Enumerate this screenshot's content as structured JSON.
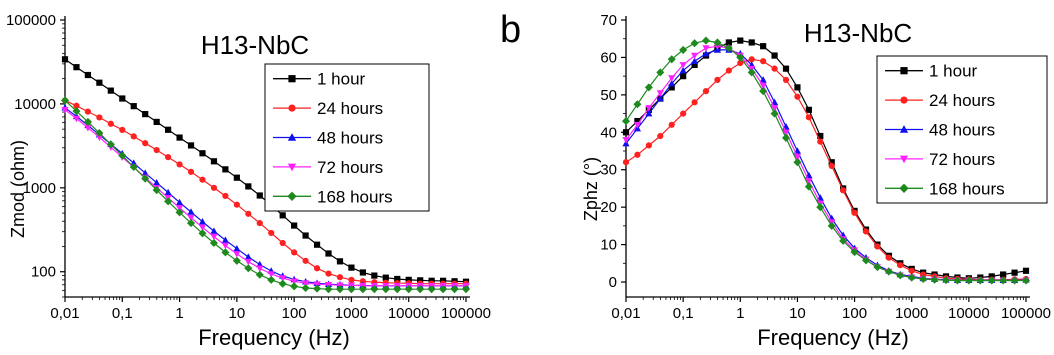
{
  "chart_data": [
    {
      "type": "line",
      "panel_label": "",
      "title": "H13-NbC",
      "xlabel": "Frequency (Hz)",
      "ylabel": "Zmod (ohm)",
      "x_scale": "log",
      "y_scale": "log",
      "xlim": [
        0.01,
        100000
      ],
      "ylim": [
        50,
        100000
      ],
      "x_ticks": [
        0.01,
        0.1,
        1,
        10,
        100,
        1000,
        10000,
        100000
      ],
      "x_tick_labels": [
        "0,01",
        "0,1",
        "1",
        "10",
        "100",
        "1000",
        "10000",
        "100000"
      ],
      "y_ticks": [
        100,
        1000,
        10000,
        100000
      ],
      "y_tick_labels": [
        "100",
        "1000",
        "10000",
        "100000"
      ],
      "grid": false,
      "legend_position": "top-right",
      "x": [
        0.01,
        0.01585,
        0.02512,
        0.03981,
        0.0631,
        0.1,
        0.1585,
        0.2512,
        0.3981,
        0.631,
        1,
        1.585,
        2.512,
        3.981,
        6.31,
        10,
        15.85,
        25.12,
        39.81,
        63.1,
        100,
        158.5,
        251.2,
        398.1,
        631,
        1000,
        1585,
        2512,
        3981,
        6310,
        10000,
        15850,
        25120,
        39810,
        63100,
        100000
      ],
      "series": [
        {
          "name": "1 hour",
          "color": "#000000",
          "marker": "square",
          "values": [
            34000,
            27400,
            22100,
            17900,
            14400,
            11600,
            9400,
            7560,
            6100,
            4920,
            3970,
            3200,
            2580,
            2070,
            1660,
            1320,
            1040,
            810,
            620,
            470,
            355,
            270,
            210,
            165,
            133,
            112,
            98,
            90,
            85,
            82,
            80,
            79,
            78,
            78,
            77,
            76
          ]
        },
        {
          "name": "24 hours",
          "color": "#ff2020",
          "marker": "circle",
          "values": [
            11000,
            9500,
            8100,
            6900,
            5800,
            4900,
            4100,
            3400,
            2820,
            2320,
            1900,
            1550,
            1250,
            1000,
            800,
            630,
            490,
            380,
            290,
            220,
            170,
            135,
            110,
            95,
            86,
            80,
            77,
            75,
            74,
            73,
            73,
            72,
            72,
            72,
            72,
            72
          ]
        },
        {
          "name": "48 hours",
          "color": "#1010ee",
          "marker": "triangle-up",
          "values": [
            9000,
            7100,
            5550,
            4300,
            3320,
            2560,
            1970,
            1500,
            1150,
            880,
            670,
            515,
            395,
            305,
            238,
            188,
            150,
            122,
            102,
            89,
            81,
            76,
            73,
            71,
            70,
            69,
            69,
            68,
            68,
            68,
            68,
            68,
            68,
            68,
            68,
            68
          ]
        },
        {
          "name": "72 hours",
          "color": "#ff20ff",
          "marker": "triangle-down",
          "values": [
            8500,
            6700,
            5200,
            4000,
            3050,
            2320,
            1760,
            1330,
            1000,
            760,
            575,
            440,
            338,
            262,
            205,
            163,
            132,
            110,
            94,
            84,
            77,
            73,
            71,
            70,
            69,
            69,
            68,
            68,
            68,
            68,
            68,
            68,
            68,
            68,
            68,
            68
          ]
        },
        {
          "name": "168 hours",
          "color": "#1e8a1e",
          "marker": "diamond",
          "values": [
            11000,
            8200,
            6100,
            4500,
            3300,
            2420,
            1770,
            1290,
            940,
            690,
            510,
            380,
            287,
            220,
            170,
            135,
            110,
            92,
            80,
            72,
            67,
            64,
            63,
            62,
            62,
            62,
            62,
            62,
            62,
            62,
            62,
            62,
            62,
            62,
            62,
            62
          ]
        }
      ]
    },
    {
      "type": "line",
      "panel_label": "b",
      "title": "H13-NbC",
      "xlabel": "Frequency (Hz)",
      "ylabel": "Zphz (°)",
      "x_scale": "log",
      "y_scale": "linear",
      "xlim": [
        0.01,
        100000
      ],
      "ylim": [
        -4,
        70
      ],
      "x_ticks": [
        0.01,
        0.1,
        1,
        10,
        100,
        1000,
        10000,
        100000
      ],
      "x_tick_labels": [
        "0,01",
        "0,1",
        "1",
        "10",
        "100",
        "1000",
        "10000",
        "100000"
      ],
      "y_ticks": [
        0,
        10,
        20,
        30,
        40,
        50,
        60,
        70
      ],
      "y_tick_labels": [
        "0",
        "10",
        "20",
        "30",
        "40",
        "50",
        "60",
        "70"
      ],
      "grid": false,
      "legend_position": "top-right",
      "x": [
        0.01,
        0.01585,
        0.02512,
        0.03981,
        0.0631,
        0.1,
        0.1585,
        0.2512,
        0.3981,
        0.631,
        1,
        1.585,
        2.512,
        3.981,
        6.31,
        10,
        15.85,
        25.12,
        39.81,
        63.1,
        100,
        158.5,
        251.2,
        398.1,
        631,
        1000,
        1585,
        2512,
        3981,
        6310,
        10000,
        15850,
        25120,
        39810,
        63100,
        100000
      ],
      "series": [
        {
          "name": "1 hour",
          "color": "#000000",
          "marker": "square",
          "values": [
            40,
            43,
            46,
            49,
            52,
            55,
            58,
            60.5,
            62.5,
            64,
            64.5,
            64,
            63,
            60.5,
            57,
            52,
            46,
            39,
            32,
            25,
            19,
            14,
            10,
            7,
            5,
            3.5,
            2.5,
            2,
            1.5,
            1.2,
            1,
            1.2,
            1.5,
            2,
            2.5,
            3
          ]
        },
        {
          "name": "24 hours",
          "color": "#ff2020",
          "marker": "circle",
          "values": [
            32,
            34,
            36.5,
            39,
            42,
            45,
            48,
            51,
            54,
            56.5,
            58.5,
            59.5,
            59,
            57,
            54,
            49.5,
            44,
            37.5,
            31,
            24.5,
            18.5,
            13.5,
            9.5,
            6.5,
            4.5,
            3,
            2,
            1.5,
            1,
            0.8,
            0.7,
            0.6,
            0.6,
            0.6,
            0.7,
            0.8
          ]
        },
        {
          "name": "48 hours",
          "color": "#1010ee",
          "marker": "triangle-up",
          "values": [
            37,
            41,
            45,
            49,
            53,
            56.5,
            59,
            61,
            62,
            62,
            61,
            58,
            54,
            48,
            41.5,
            35,
            28.5,
            22.5,
            17,
            12.5,
            9,
            6.5,
            4.5,
            3,
            2,
            1.5,
            1,
            0.8,
            0.6,
            0.5,
            0.5,
            0.5,
            0.5,
            0.5,
            0.5,
            0.6
          ]
        },
        {
          "name": "72 hours",
          "color": "#ff20ff",
          "marker": "triangle-down",
          "values": [
            38,
            42,
            46.5,
            50.5,
            54.5,
            58,
            60.5,
            62.5,
            63,
            62.5,
            60.5,
            57,
            52.5,
            46.5,
            40,
            33.5,
            27,
            21,
            16,
            11.5,
            8.5,
            6,
            4,
            2.8,
            1.8,
            1.3,
            0.9,
            0.7,
            0.5,
            0.4,
            0.4,
            0.4,
            0.4,
            0.4,
            0.4,
            0.5
          ]
        },
        {
          "name": "168 hours",
          "color": "#1e8a1e",
          "marker": "diamond",
          "values": [
            43,
            47.5,
            52,
            56,
            59.5,
            62,
            63.8,
            64.5,
            64,
            62.5,
            60,
            56,
            51,
            45,
            38.5,
            32,
            25.5,
            20,
            15,
            11,
            8,
            5.8,
            4,
            2.8,
            1.8,
            1.2,
            0.8,
            0.6,
            0.5,
            0.4,
            0.4,
            0.4,
            0.4,
            0.4,
            0.4,
            0.4
          ]
        }
      ]
    }
  ]
}
